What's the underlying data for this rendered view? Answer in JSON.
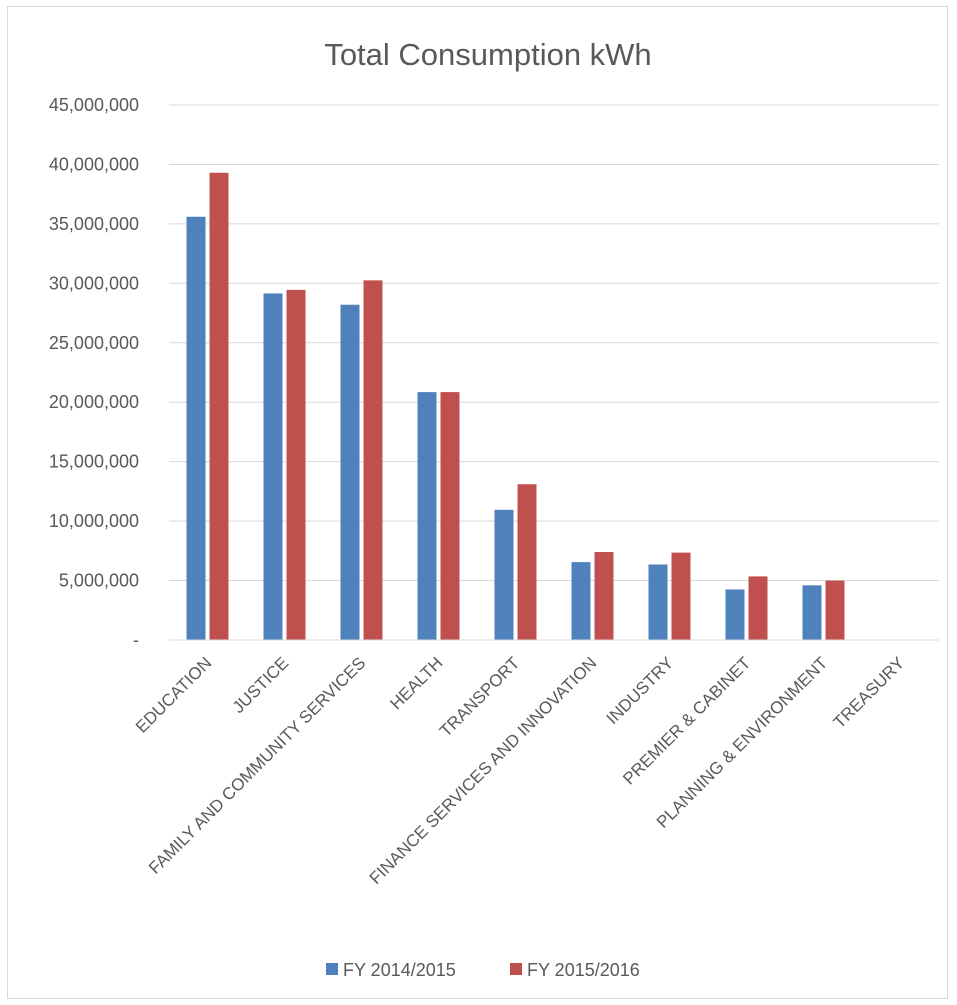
{
  "chart_data": {
    "type": "bar",
    "title": "Total Consumption kWh",
    "xlabel": "",
    "ylabel": "",
    "ylim": [
      0,
      45000000
    ],
    "y_ticks": [
      {
        "value": 0,
        "label": "-"
      },
      {
        "value": 5000000,
        "label": "5,000,000"
      },
      {
        "value": 10000000,
        "label": "10,000,000"
      },
      {
        "value": 15000000,
        "label": "15,000,000"
      },
      {
        "value": 20000000,
        "label": "20,000,000"
      },
      {
        "value": 25000000,
        "label": "25,000,000"
      },
      {
        "value": 30000000,
        "label": "30,000,000"
      },
      {
        "value": 35000000,
        "label": "35,000,000"
      },
      {
        "value": 40000000,
        "label": "40,000,000"
      },
      {
        "value": 45000000,
        "label": "45,000,000"
      }
    ],
    "categories": [
      "EDUCATION",
      "JUSTICE",
      "FAMILY AND COMMUNITY SERVICES",
      "HEALTH",
      "TRANSPORT",
      "FINANCE SERVICES AND INNOVATION",
      "INDUSTRY",
      "PREMIER & CABINET",
      "PLANNING & ENVIRONMENT",
      "TREASURY"
    ],
    "series": [
      {
        "name": "FY 2014/2015",
        "color": "#4f81bd",
        "values": [
          35600000,
          29150000,
          28200000,
          20850000,
          10950000,
          6550000,
          6350000,
          4250000,
          4600000,
          0
        ]
      },
      {
        "name": "FY 2015/2016",
        "color": "#c0504d",
        "values": [
          39300000,
          29450000,
          30250000,
          20850000,
          13100000,
          7400000,
          7350000,
          5350000,
          5000000,
          0
        ]
      }
    ],
    "grid": true,
    "legend_position": "bottom"
  }
}
